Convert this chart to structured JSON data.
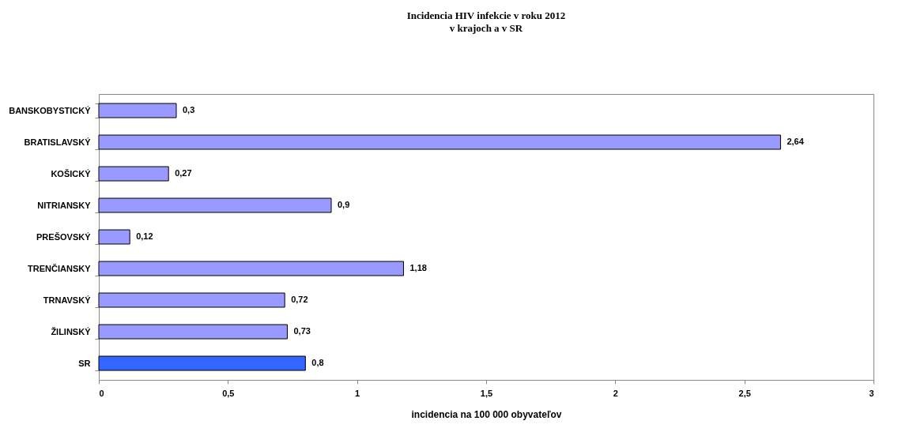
{
  "chart_data": {
    "type": "bar",
    "orientation": "horizontal",
    "title": "Incidencia HIV infekcie  v roku 2012",
    "subtitle": "v krajoch  a v SR",
    "xlabel": "incidencia na 100 000 obyvateľov",
    "categories": [
      "BANSKOBYSTICKÝ",
      "BRATISLAVSKÝ",
      "KOŠICKÝ",
      "NITRIANSKY",
      "PREŠOVSKÝ",
      "TRENČIANSKY",
      "TRNAVSKÝ",
      "ŽILINSKÝ",
      "SR"
    ],
    "values": [
      0.3,
      2.64,
      0.27,
      0.9,
      0.12,
      1.18,
      0.72,
      0.73,
      0.8
    ],
    "colors": [
      "#9999ff",
      "#9999ff",
      "#9999ff",
      "#9999ff",
      "#9999ff",
      "#9999ff",
      "#9999ff",
      "#9999ff",
      "#3366ff"
    ],
    "value_labels": [
      "0,3",
      "2,64",
      "0,27",
      "0,9",
      "0,12",
      "1,18",
      "0,72",
      "0,73",
      "0,8"
    ],
    "xlim": [
      0,
      3
    ],
    "xticks": [
      0,
      {
        "value": 0.5,
        "label": "0,5"
      },
      1,
      {
        "value": 1.5,
        "label": "1,5"
      },
      2,
      {
        "value": 2.5,
        "label": "2,5"
      },
      3
    ],
    "grid": false,
    "legend": false
  }
}
